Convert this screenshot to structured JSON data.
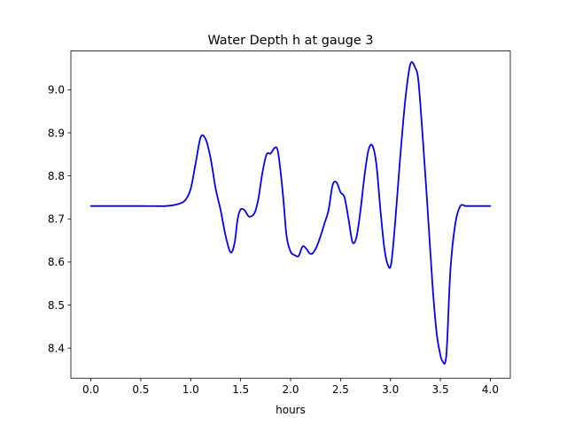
{
  "chart_data": {
    "type": "line",
    "title": "Water Depth h at gauge 3",
    "xlabel": "hours",
    "ylabel": "",
    "xlim": [
      -0.2,
      4.2
    ],
    "ylim": [
      8.33,
      9.09
    ],
    "xticks": [
      0.0,
      0.5,
      1.0,
      1.5,
      2.0,
      2.5,
      3.0,
      3.5,
      4.0
    ],
    "xtick_labels": [
      "0.0",
      "0.5",
      "1.0",
      "1.5",
      "2.0",
      "2.5",
      "3.0",
      "3.5",
      "4.0"
    ],
    "yticks": [
      8.4,
      8.5,
      8.6,
      8.7,
      8.8,
      8.9,
      9.0
    ],
    "ytick_labels": [
      "8.4",
      "8.5",
      "8.6",
      "8.7",
      "8.8",
      "8.9",
      "9.0"
    ],
    "grid": false,
    "series": [
      {
        "color": "#0000ff",
        "x": [
          0.0,
          0.5,
          0.75,
          0.88,
          0.95,
          1.0,
          1.05,
          1.1,
          1.15,
          1.2,
          1.25,
          1.3,
          1.35,
          1.4,
          1.44,
          1.47,
          1.5,
          1.54,
          1.58,
          1.62,
          1.65,
          1.68,
          1.72,
          1.76,
          1.8,
          1.84,
          1.87,
          1.9,
          1.93,
          1.96,
          2.0,
          2.04,
          2.08,
          2.12,
          2.16,
          2.19,
          2.22,
          2.26,
          2.3,
          2.34,
          2.38,
          2.42,
          2.46,
          2.5,
          2.54,
          2.58,
          2.62,
          2.66,
          2.7,
          2.74,
          2.78,
          2.82,
          2.86,
          2.9,
          2.94,
          2.98,
          3.01,
          3.05,
          3.1,
          3.15,
          3.2,
          3.25,
          3.28,
          3.32,
          3.37,
          3.42,
          3.46,
          3.49,
          3.52,
          3.56,
          3.6,
          3.65,
          3.7,
          3.75,
          3.8,
          3.84,
          3.88,
          3.92,
          3.96,
          4.0
        ],
        "y": [
          8.73,
          8.73,
          8.73,
          8.735,
          8.745,
          8.77,
          8.83,
          8.89,
          8.885,
          8.84,
          8.77,
          8.72,
          8.66,
          8.622,
          8.645,
          8.7,
          8.722,
          8.72,
          8.706,
          8.708,
          8.72,
          8.75,
          8.81,
          8.85,
          8.852,
          8.865,
          8.86,
          8.81,
          8.74,
          8.66,
          8.624,
          8.616,
          8.614,
          8.636,
          8.63,
          8.62,
          8.62,
          8.635,
          8.66,
          8.69,
          8.72,
          8.778,
          8.785,
          8.762,
          8.75,
          8.7,
          8.646,
          8.658,
          8.72,
          8.8,
          8.86,
          8.87,
          8.825,
          8.72,
          8.63,
          8.59,
          8.6,
          8.7,
          8.85,
          8.98,
          9.06,
          9.05,
          9.02,
          8.9,
          8.73,
          8.55,
          8.44,
          8.395,
          8.37,
          8.385,
          8.58,
          8.69,
          8.73,
          8.73,
          8.73,
          8.73,
          8.73,
          8.73,
          8.73,
          8.73
        ]
      }
    ]
  }
}
